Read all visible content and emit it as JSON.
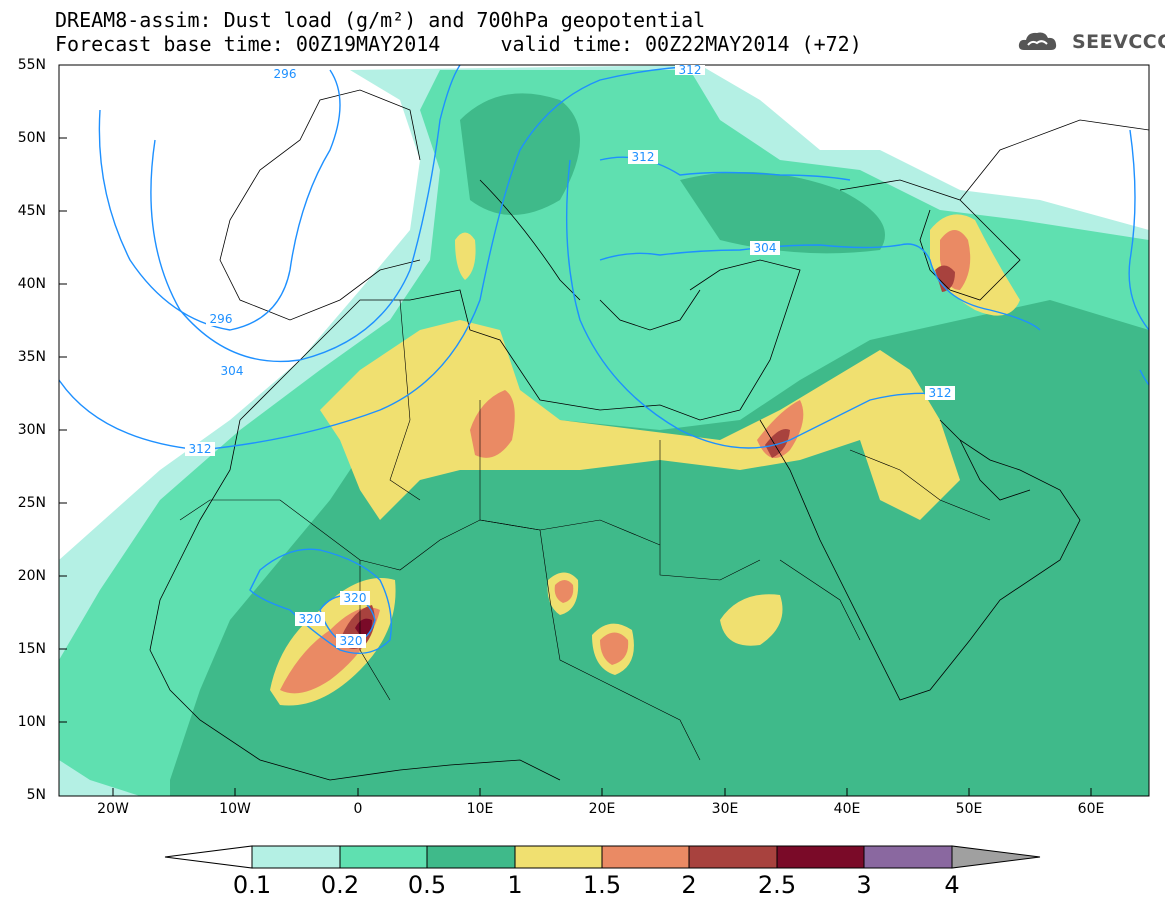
{
  "header": {
    "title_line1": "DREAM8-assim: Dust load (g/m²) and 700hPa geopotential",
    "title_line2": "Forecast base time: 00Z19MAY2014     valid time: 00Z22MAY2014 (+72)",
    "logo_text": "SEEVCCC",
    "logo_icon": "cloud-logo-icon"
  },
  "axes": {
    "lat_labels": [
      "55N",
      "50N",
      "45N",
      "40N",
      "35N",
      "30N",
      "25N",
      "20N",
      "15N",
      "10N",
      "5N"
    ],
    "lon_labels": [
      "20W",
      "10W",
      "0",
      "10E",
      "20E",
      "30E",
      "40E",
      "50E",
      "60E"
    ]
  },
  "contours": {
    "labels": [
      "296",
      "296",
      "304",
      "304",
      "312",
      "312",
      "312",
      "312",
      "320",
      "320",
      "320"
    ]
  },
  "colorbar": {
    "labels": [
      "0.1",
      "0.2",
      "0.5",
      "1",
      "1.5",
      "2",
      "2.5",
      "3",
      "4"
    ],
    "colors": [
      "#b4f0e4",
      "#5fe0b0",
      "#3fba8a",
      "#f0e070",
      "#ea8a64",
      "#a8423e",
      "#7a0a28",
      "#8a68a0"
    ],
    "overflow_color": "#a0a0a0",
    "underflow_color": "#ffffff"
  },
  "colors": {
    "contour_line": "#1e90ff",
    "land_border": "#000000"
  }
}
